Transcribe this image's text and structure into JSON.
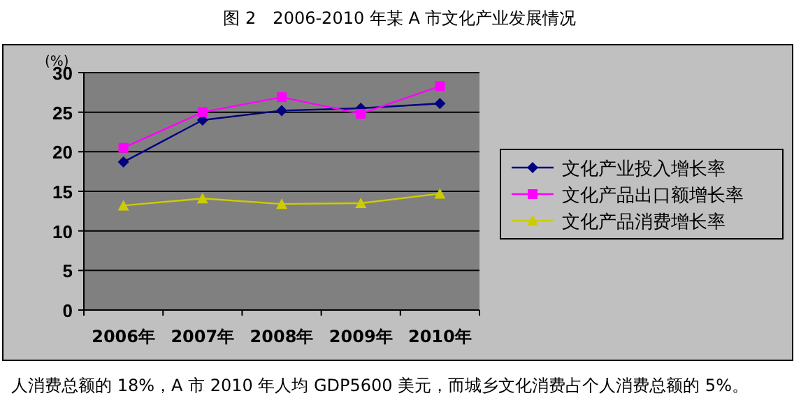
{
  "chart_data": {
    "type": "line",
    "title": "图 2　2006-2010 年某 A 市文化产业发展情况",
    "ylabel": "(%)",
    "categories": [
      "2006年",
      "2007年",
      "2008年",
      "2009年",
      "2010年"
    ],
    "series": [
      {
        "name": "文化产业投入增长率",
        "color": "#000080",
        "marker": "diamond",
        "values": [
          18.7,
          24.0,
          25.2,
          25.5,
          26.1
        ]
      },
      {
        "name": "文化产品出口额增长率",
        "color": "#ff00ff",
        "marker": "square",
        "values": [
          20.5,
          25.0,
          26.9,
          24.8,
          28.3
        ]
      },
      {
        "name": "文化产品消费增长率",
        "color": "#cccc00",
        "marker": "triangle",
        "values": [
          13.2,
          14.1,
          13.4,
          13.5,
          14.7
        ]
      }
    ],
    "ylim": [
      0,
      30
    ],
    "yticks": [
      0,
      5,
      10,
      15,
      20,
      25,
      30
    ],
    "grid": "y",
    "legend": "right",
    "line_style": "solid",
    "annotations": [
      "人消费总额的 18%，A 市 2010 年人均 GDP5600 美元，而城乡文化消费占个人消费总额的 5%。"
    ]
  }
}
